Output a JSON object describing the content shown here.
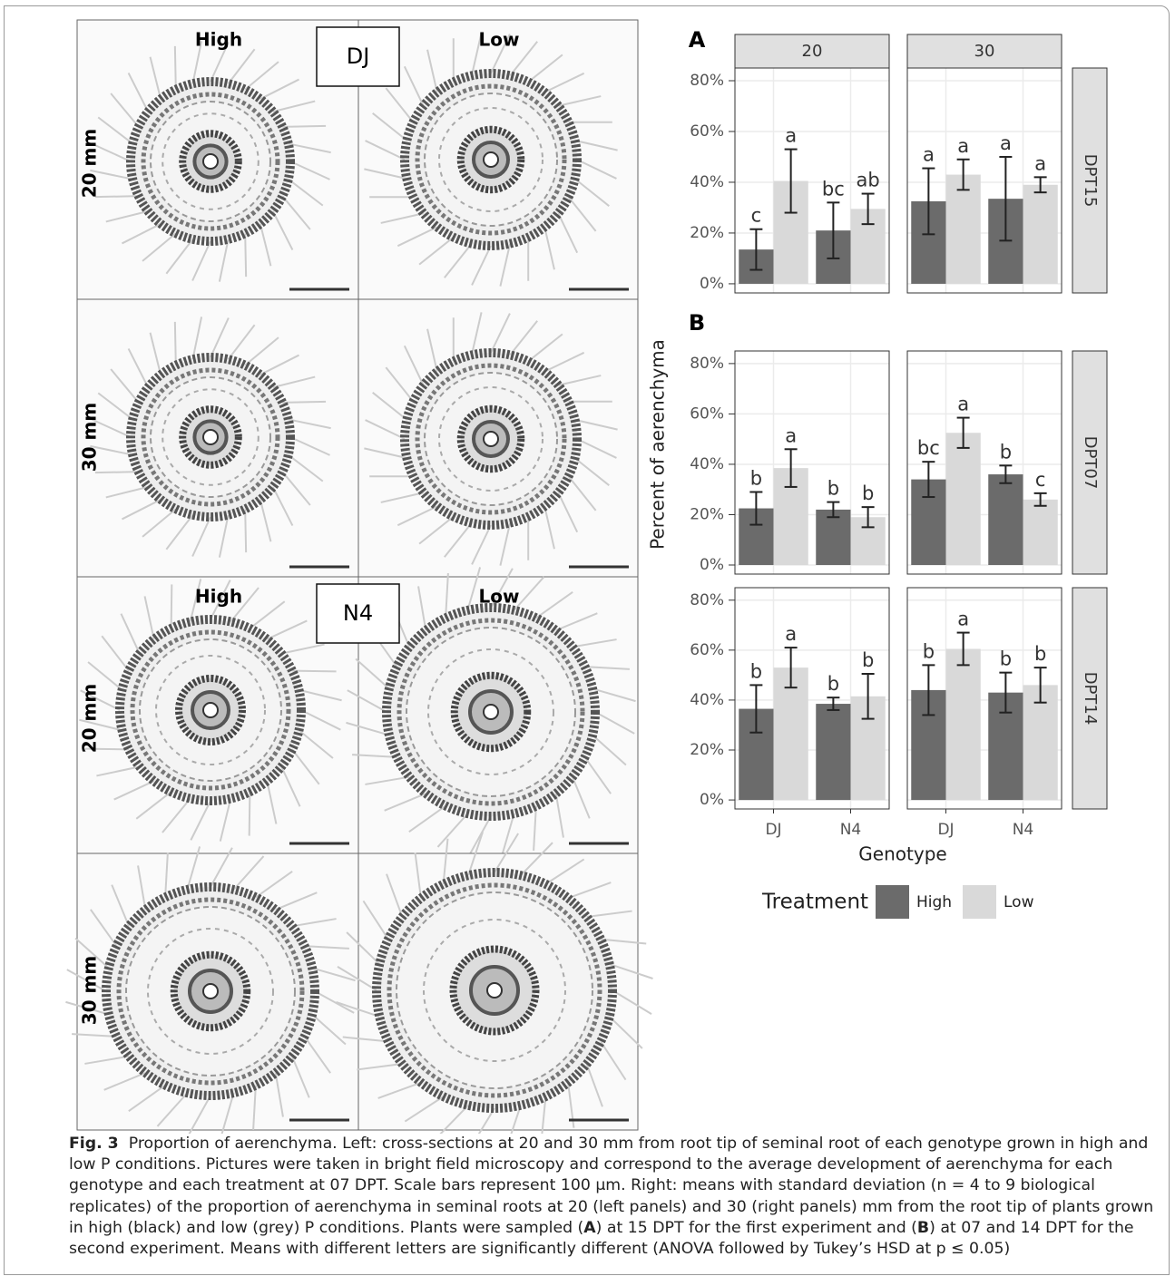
{
  "micrographs": [
    {
      "genotype": "DJ",
      "columns": [
        "High",
        "Low"
      ],
      "rows": [
        "20 mm",
        "30 mm"
      ]
    },
    {
      "genotype": "N4",
      "columns": [
        "High",
        "Low"
      ],
      "rows": [
        "20 mm",
        "30 mm"
      ]
    }
  ],
  "chart_data": {
    "type": "bar",
    "y_label": "Percent of aerenchyma",
    "x_label": "Genotype",
    "legend_title": "Treatment",
    "categories": [
      "DJ",
      "N4"
    ],
    "series": [
      {
        "name": "High",
        "color": "#6b6b6b"
      },
      {
        "name": "Low",
        "color": "#d9d9d9"
      }
    ],
    "facet_columns": [
      "20",
      "30"
    ],
    "facet_rows": [
      {
        "label": "DPT15",
        "tag": "A"
      },
      {
        "label": "DPT07",
        "tag": "B"
      },
      {
        "label": "DPT14"
      }
    ],
    "ylim": [
      -3.6,
      85
    ],
    "yticks": [
      {
        "value": 0,
        "label": "0%"
      },
      {
        "value": 20,
        "label": "20%"
      },
      {
        "value": 40,
        "label": "40%"
      },
      {
        "value": 60,
        "label": "60%"
      },
      {
        "value": 80,
        "label": "80%"
      }
    ],
    "grid": true,
    "panels": [
      [
        {
          "series": [
            {
              "values": [
                13.5,
                21
              ],
              "errors": [
                8,
                11
              ],
              "letters": [
                "c",
                "bc"
              ]
            },
            {
              "values": [
                40.5,
                29.5
              ],
              "errors": [
                12.5,
                6
              ],
              "letters": [
                "a",
                "ab"
              ]
            }
          ]
        },
        {
          "series": [
            {
              "values": [
                32.5,
                33.5
              ],
              "errors": [
                13,
                16.5
              ],
              "letters": [
                "a",
                "a"
              ]
            },
            {
              "values": [
                43,
                39
              ],
              "errors": [
                6,
                3
              ],
              "letters": [
                "a",
                "a"
              ]
            }
          ]
        }
      ],
      [
        {
          "series": [
            {
              "values": [
                22.5,
                22
              ],
              "errors": [
                6.5,
                3
              ],
              "letters": [
                "b",
                "b"
              ]
            },
            {
              "values": [
                38.5,
                19
              ],
              "errors": [
                7.5,
                4
              ],
              "letters": [
                "a",
                "b"
              ]
            }
          ]
        },
        {
          "series": [
            {
              "values": [
                34,
                36
              ],
              "errors": [
                7,
                3.5
              ],
              "letters": [
                "bc",
                "b"
              ]
            },
            {
              "values": [
                52.5,
                26
              ],
              "errors": [
                6,
                2.5
              ],
              "letters": [
                "a",
                "c"
              ]
            }
          ]
        }
      ],
      [
        {
          "series": [
            {
              "values": [
                36.5,
                38.5
              ],
              "errors": [
                9.5,
                2.5
              ],
              "letters": [
                "b",
                "b"
              ]
            },
            {
              "values": [
                53,
                41.5
              ],
              "errors": [
                8,
                9
              ],
              "letters": [
                "a",
                "b"
              ]
            }
          ]
        },
        {
          "series": [
            {
              "values": [
                44,
                43
              ],
              "errors": [
                10,
                8
              ],
              "letters": [
                "b",
                "b"
              ]
            },
            {
              "values": [
                60.5,
                46
              ],
              "errors": [
                6.5,
                7
              ],
              "letters": [
                "a",
                "b"
              ]
            }
          ]
        }
      ]
    ]
  },
  "caption": {
    "label": "Fig. 3",
    "parts": [
      "Proportion of aerenchyma. Left: cross-sections at 20 and 30 mm from root tip of seminal root of each genotype grown in high and low P conditions. Pictures were taken in bright field microscopy and correspond to the average development of aerenchyma for each genotype and each treatment at 07 DPT. Scale bars represent 100 µm. Right: means with standard deviation (n = 4 to 9 biological replicates) of the proportion of aerenchyma in seminal roots at 20 (left panels) and 30 (right panels) mm from the root tip of plants grown in high (black) and low (grey) P conditions. Plants were sampled (",
      "A",
      ") at 15 DPT for the first experiment and (",
      "B",
      ") at 07 and 14 DPT for the second experiment. Means with different letters are significantly different (ANOVA followed by Tukey’s HSD at p ≤ 0.05)"
    ]
  }
}
